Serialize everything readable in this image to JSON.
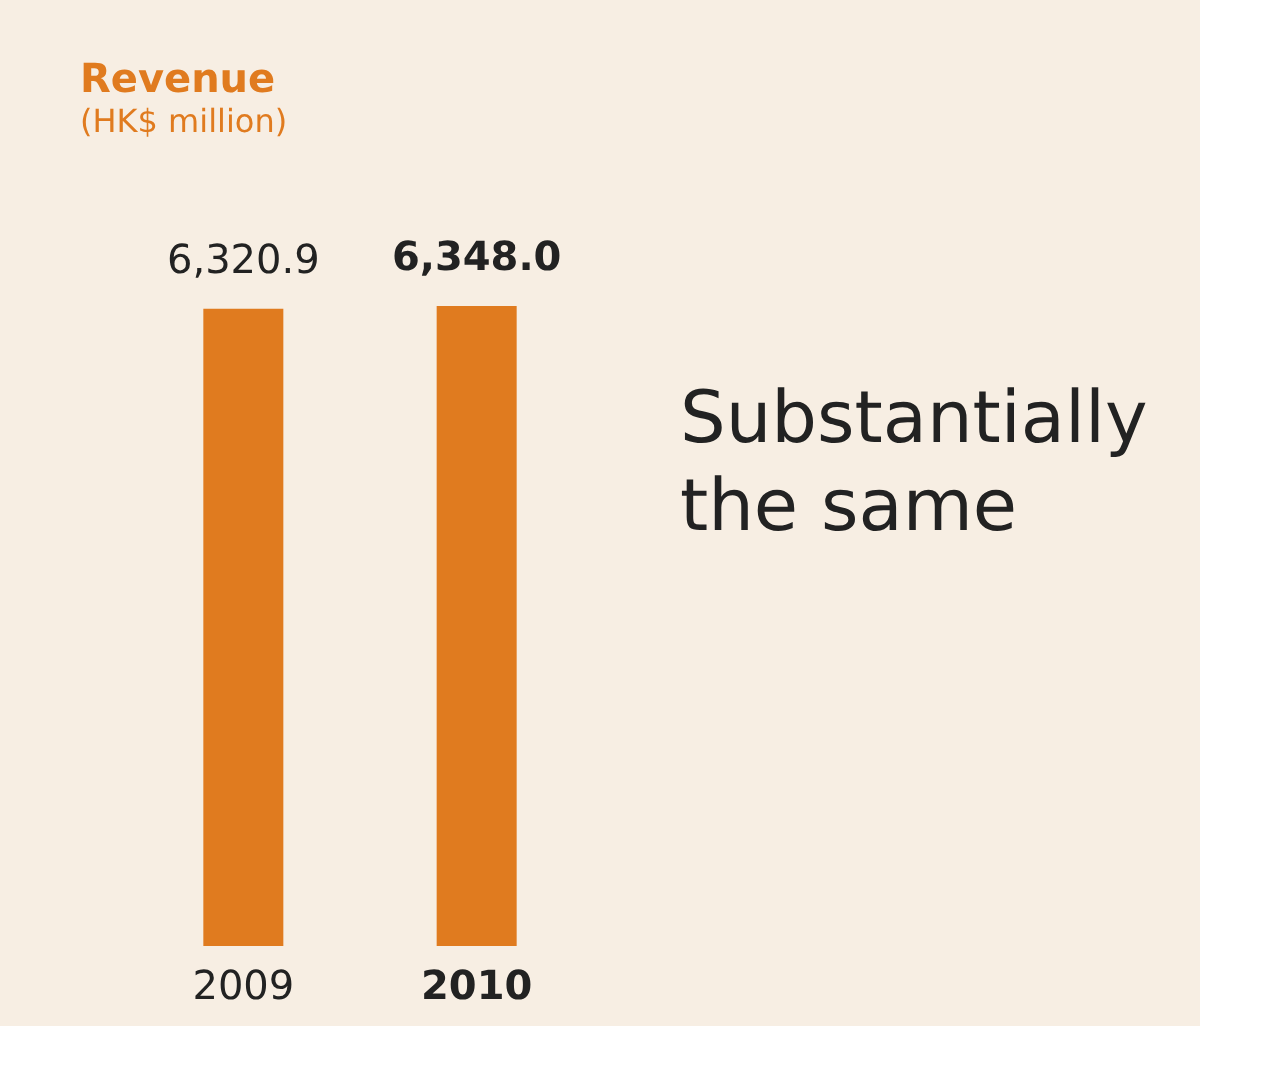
{
  "chart_data": {
    "type": "bar",
    "title": "Revenue",
    "subtitle": "(HK$ million)",
    "categories": [
      "2009",
      "2010"
    ],
    "values": [
      6320.9,
      6348.0
    ],
    "color": "#e07b1f",
    "value_labels": [
      "6,320.9",
      "6,348.0"
    ],
    "tick_labels": "x",
    "annotations": [
      "Substantially the same"
    ]
  }
}
